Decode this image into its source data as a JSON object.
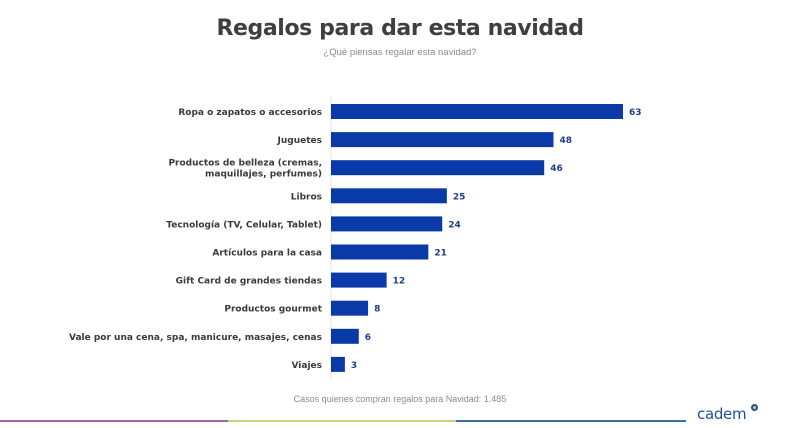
{
  "chart_data": {
    "type": "bar",
    "orientation": "horizontal",
    "title": "Regalos para dar esta navidad",
    "subtitle": "¿Qué piensas regalar esta navidad?",
    "categories": [
      "Ropa o zapatos o accesorios",
      "Juguetes",
      "Productos de belleza (cremas, maquillajes, perfumes)",
      "Libros",
      "Tecnología (TV, Celular, Tablet)",
      "Artículos para la casa",
      "Gift Card de grandes tiendas",
      "Productos gourmet",
      "Vale por una cena, spa, manicure, masajes, cenas",
      "Viajes"
    ],
    "category_lines": [
      [
        "Ropa o zapatos o accesorios"
      ],
      [
        "Juguetes"
      ],
      [
        "Productos de belleza (cremas,",
        "maquillajes, perfumes)"
      ],
      [
        "Libros"
      ],
      [
        "Tecnología (TV, Celular, Tablet)"
      ],
      [
        "Artículos para la casa"
      ],
      [
        "Gift Card de grandes tiendas"
      ],
      [
        "Productos gourmet"
      ],
      [
        "Vale por una cena, spa, manicure, masajes, cenas"
      ],
      [
        "Viajes"
      ]
    ],
    "values": [
      63,
      48,
      46,
      25,
      24,
      21,
      12,
      8,
      6,
      3
    ],
    "xlim": [
      0,
      63
    ],
    "xlabel": "",
    "ylabel": "",
    "grid": false,
    "legend": "none",
    "bar_color": "#0a3aa8",
    "footnote": "Casos quienes compran regalos para Navidad: 1.485"
  },
  "brand": {
    "logo_text": "cadem",
    "line_colors": [
      "#a6679e",
      "#c5d57a",
      "#3d6ea8"
    ]
  }
}
